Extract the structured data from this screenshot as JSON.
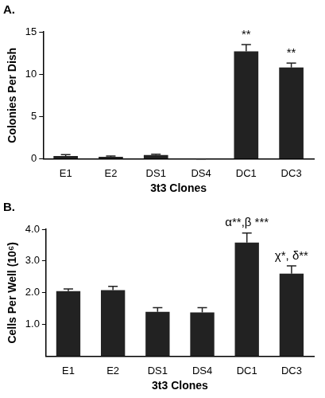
{
  "chart_data": [
    {
      "type": "bar",
      "title": "A.",
      "x_label": "3t3 Clones",
      "y_label": "Colonies Per Dish",
      "categories": [
        "E1",
        "E2",
        "DS1",
        "DS4",
        "DC1",
        "DC3"
      ],
      "values": [
        0.35,
        0.25,
        0.45,
        0,
        12.7,
        10.8
      ],
      "errors": [
        0.15,
        0.1,
        0.1,
        0,
        0.8,
        0.5
      ],
      "color": "#222222",
      "ylim": [
        0,
        15
      ],
      "yticks": [
        0,
        5,
        10,
        15
      ],
      "grid": false,
      "annotations": [
        {
          "category": "DC1",
          "text": "**"
        },
        {
          "category": "DC3",
          "text": "**"
        }
      ]
    },
    {
      "type": "bar",
      "title": "B.",
      "x_label": "3t3 Clones",
      "y_label": "Cells Per Well (10⁶)",
      "categories": [
        "E1",
        "E2",
        "DS1",
        "DS4",
        "DC1",
        "DC3"
      ],
      "values": [
        2.05,
        2.08,
        1.4,
        1.38,
        3.58,
        2.6
      ],
      "errors": [
        0.07,
        0.12,
        0.13,
        0.15,
        0.3,
        0.25
      ],
      "color": "#222222",
      "ylim": [
        0,
        4
      ],
      "yticks": [
        {
          "value": 1,
          "label": "1.0"
        },
        {
          "value": 2,
          "label": "2.0"
        },
        {
          "value": 3,
          "label": "3.0"
        },
        {
          "value": 4,
          "label": "4.0"
        }
      ],
      "grid": false,
      "annotations": [
        {
          "category": "DC1",
          "text": "α**,β ***"
        },
        {
          "category": "DC3",
          "text": "χ*, δ**"
        }
      ]
    }
  ]
}
